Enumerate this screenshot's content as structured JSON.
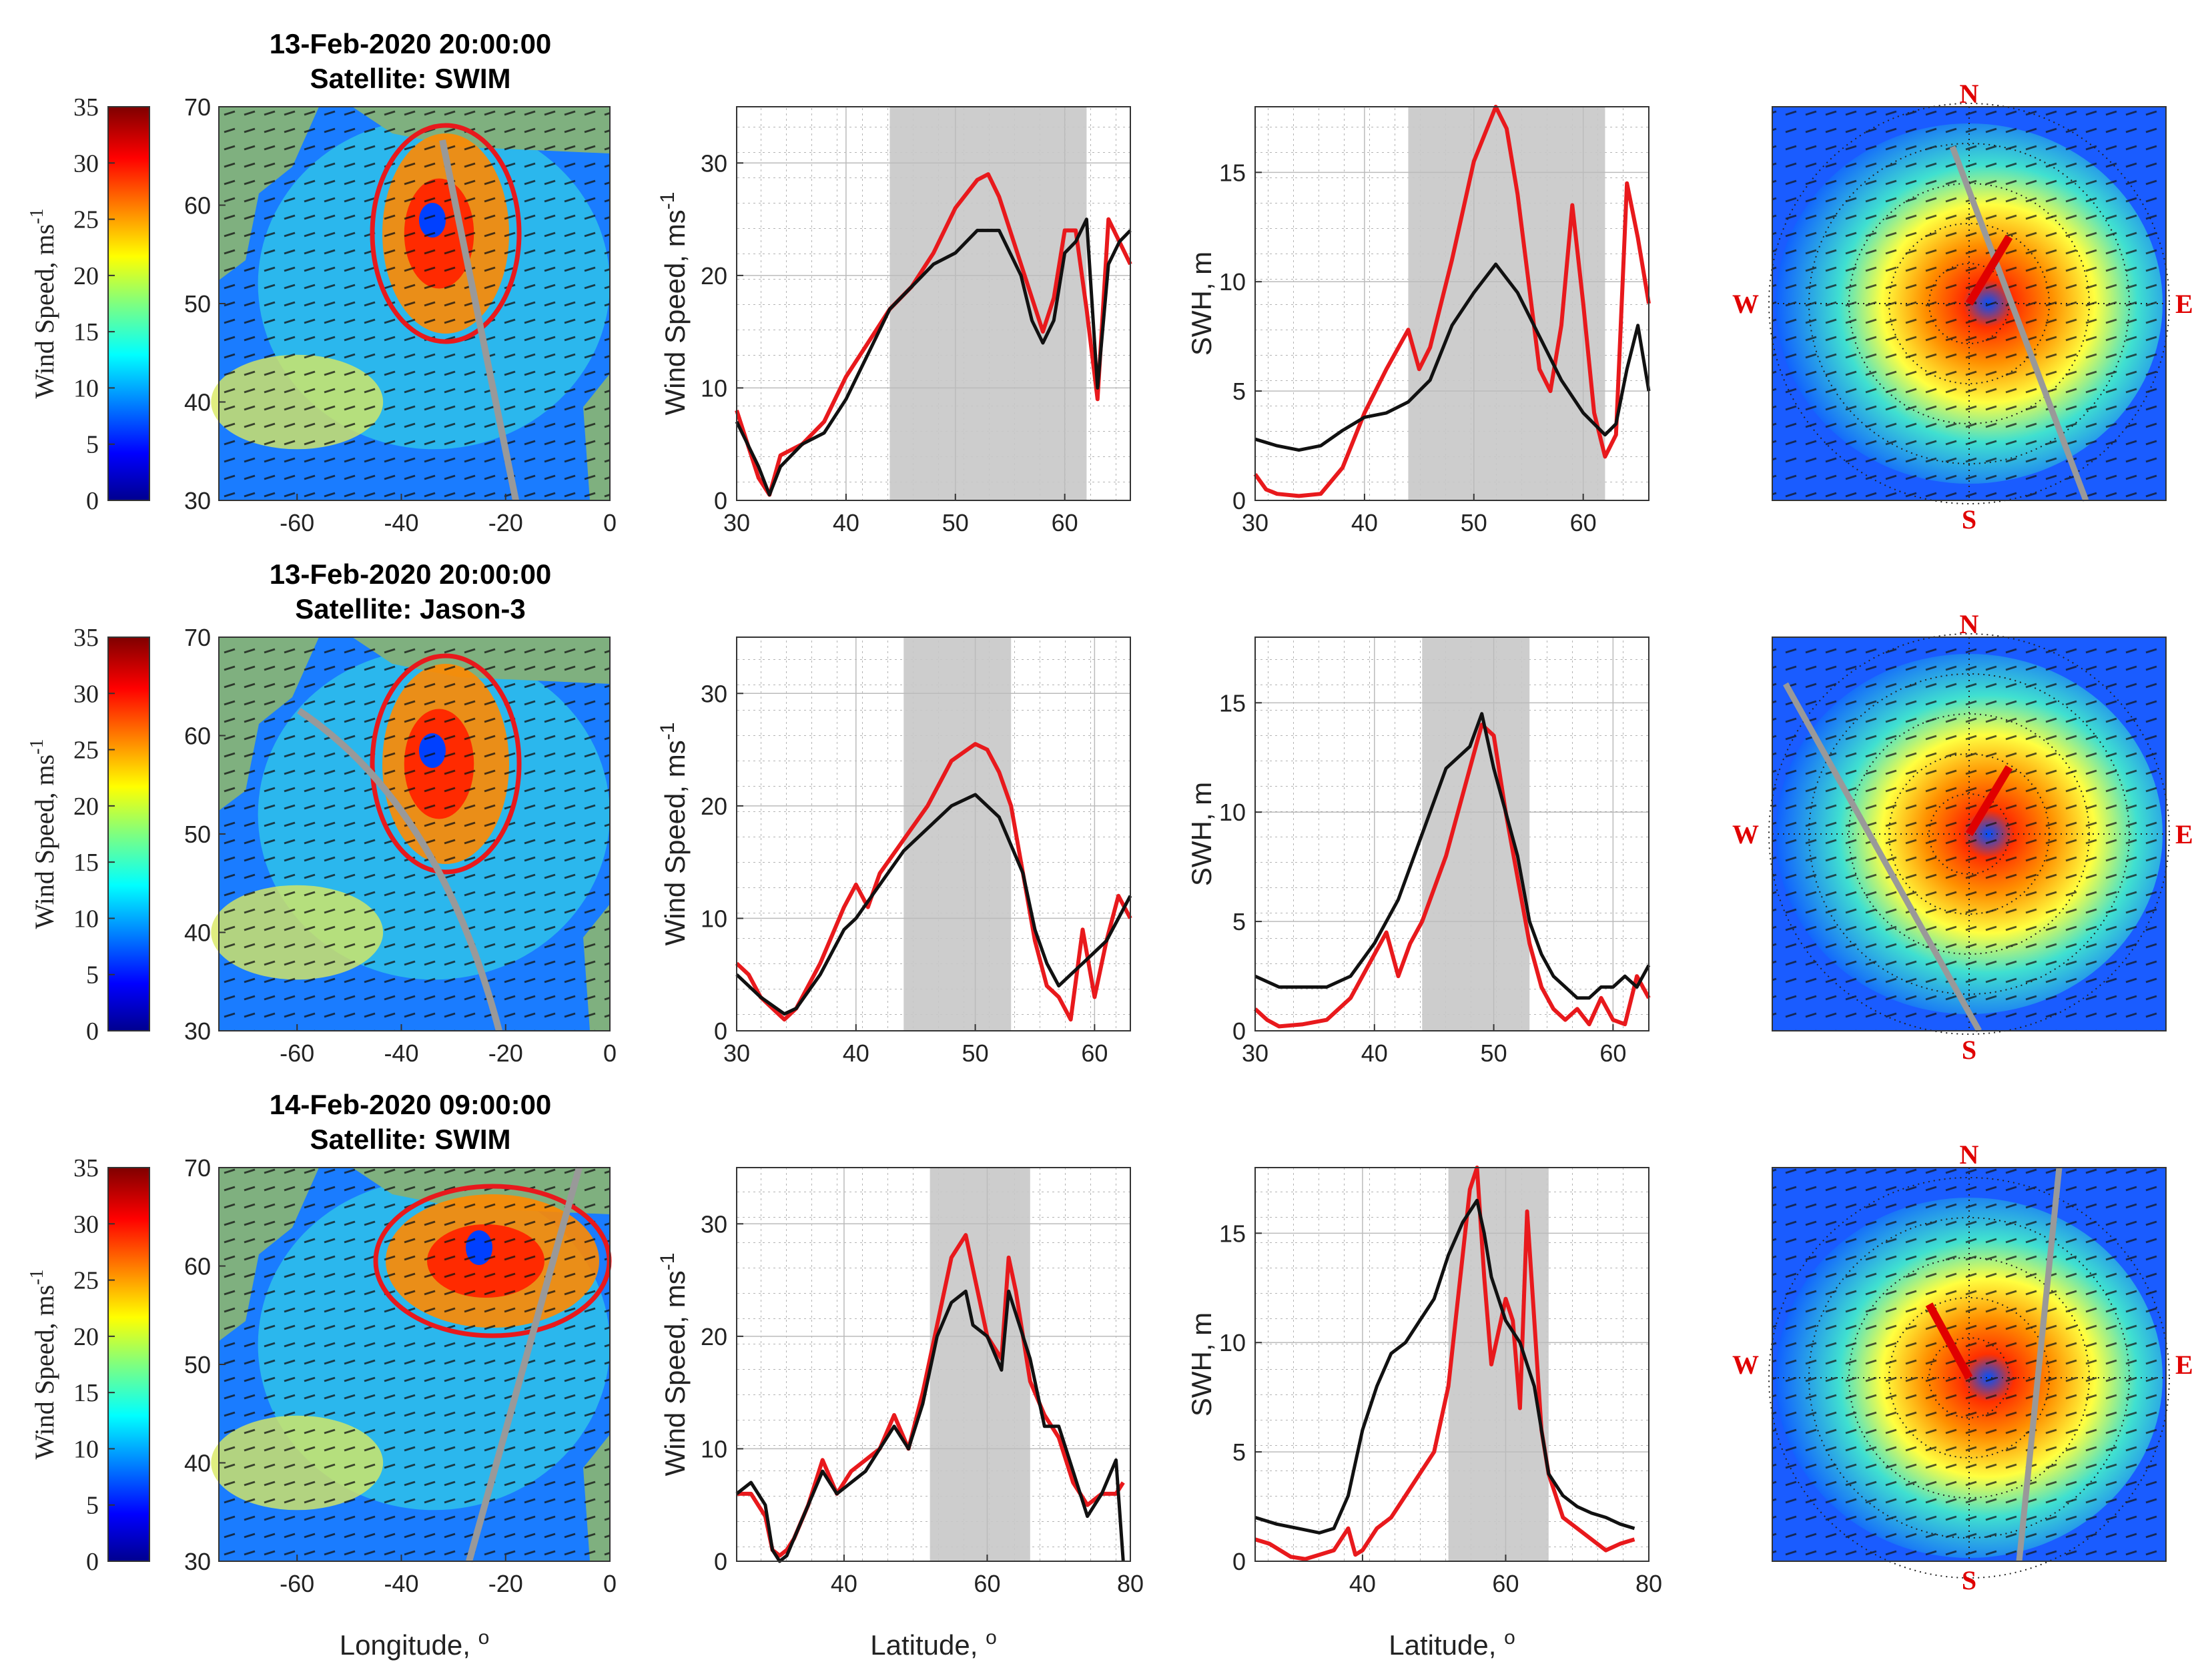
{
  "colors": {
    "model": "#e8191c",
    "satellite": "#111111",
    "track": "#999999",
    "shade": "#c8c8c8",
    "land": "#7fb07f",
    "compass": "#e00000"
  },
  "colorbar": {
    "label": "Wind Speed, ms",
    "superscript": "-1",
    "ticks": [
      "0",
      "5",
      "10",
      "15",
      "20",
      "25",
      "30",
      "35"
    ]
  },
  "map_axes": {
    "xlabel": "Longitude, o",
    "lon_ticks": [
      "-60",
      "-40",
      "-20",
      "0"
    ],
    "lat_ticks": [
      "30",
      "40",
      "50",
      "60",
      "70"
    ]
  },
  "compass": {
    "n": "N",
    "s": "S",
    "w": "W",
    "e": "E"
  },
  "rows": [
    {
      "title": "13-Feb-2020 20:00:00",
      "subtitle": "Satellite: SWIM"
    },
    {
      "title": "13-Feb-2020 20:00:00",
      "subtitle": "Satellite: Jason-3"
    },
    {
      "title": "14-Feb-2020 09:00:00",
      "subtitle": "Satellite: SWIM"
    }
  ],
  "chart_data": [
    {
      "type": "line",
      "row": 0,
      "title": "13-Feb-2020 20:00:00 / Satellite: SWIM",
      "xlabel": "",
      "ylabel": "Wind Speed, ms-1",
      "xlim": [
        30,
        66
      ],
      "ylim": [
        0,
        35
      ],
      "xticks": [
        "30",
        "40",
        "50",
        "60"
      ],
      "yticks": [
        "0",
        "10",
        "20",
        "30"
      ],
      "shaded": [
        44,
        62
      ],
      "series": [
        {
          "name": "model",
          "x": [
            30,
            31,
            32,
            33,
            34,
            36,
            38,
            40,
            42,
            44,
            46,
            48,
            50,
            52,
            53,
            54,
            56,
            57,
            58,
            59,
            60,
            61,
            62,
            63,
            64,
            65,
            66
          ],
          "values": [
            8,
            5,
            2,
            0.5,
            4,
            5,
            7,
            11,
            14,
            17,
            19,
            22,
            26,
            28.5,
            29,
            27,
            21,
            18,
            15,
            18,
            24,
            24,
            17,
            9,
            25,
            23,
            21
          ]
        },
        {
          "name": "satellite",
          "x": [
            30,
            31,
            32,
            33,
            34,
            36,
            38,
            40,
            42,
            44,
            46,
            48,
            50,
            52,
            54,
            55,
            56,
            57,
            58,
            59,
            60,
            61,
            62,
            63,
            64,
            65,
            66
          ],
          "values": [
            7,
            5,
            3,
            0.5,
            3,
            5,
            6,
            9,
            13,
            17,
            19,
            21,
            22,
            24,
            24,
            22,
            20,
            16,
            14,
            16,
            22,
            23,
            25,
            10,
            21,
            23,
            24
          ]
        }
      ]
    },
    {
      "type": "line",
      "row": 0,
      "title": "13-Feb-2020 20:00:00 / Satellite: SWIM",
      "xlabel": "",
      "ylabel": "SWH, m",
      "xlim": [
        30,
        66
      ],
      "ylim": [
        0,
        18
      ],
      "xticks": [
        "30",
        "40",
        "50",
        "60"
      ],
      "yticks": [
        "0",
        "5",
        "10",
        "15"
      ],
      "shaded": [
        44,
        62
      ],
      "series": [
        {
          "name": "model",
          "x": [
            30,
            31,
            32,
            34,
            36,
            38,
            40,
            42,
            44,
            45,
            46,
            48,
            50,
            52,
            53,
            54,
            56,
            57,
            58,
            59,
            60,
            61,
            62,
            63,
            64,
            65,
            66
          ],
          "values": [
            1.2,
            0.5,
            0.3,
            0.2,
            0.3,
            1.5,
            4,
            6,
            7.8,
            6,
            7,
            11,
            15.5,
            18,
            17,
            14,
            6,
            5,
            8,
            13.5,
            9,
            4,
            2,
            3,
            14.5,
            12,
            9
          ]
        },
        {
          "name": "satellite",
          "x": [
            30,
            32,
            34,
            36,
            38,
            40,
            42,
            44,
            46,
            48,
            50,
            52,
            54,
            56,
            58,
            60,
            62,
            63,
            64,
            65,
            66
          ],
          "values": [
            2.8,
            2.5,
            2.3,
            2.5,
            3.2,
            3.8,
            4,
            4.5,
            5.5,
            8,
            9.5,
            10.8,
            9.5,
            7.5,
            5.5,
            4,
            3,
            3.5,
            6,
            8,
            5
          ]
        }
      ]
    },
    {
      "type": "line",
      "row": 1,
      "title": "13-Feb-2020 20:00:00 / Satellite: Jason-3",
      "xlabel": "",
      "ylabel": "Wind Speed, ms-1",
      "xlim": [
        30,
        63
      ],
      "ylim": [
        0,
        35
      ],
      "xticks": [
        "30",
        "40",
        "50",
        "60"
      ],
      "yticks": [
        "0",
        "10",
        "20",
        "30"
      ],
      "shaded": [
        44,
        53
      ],
      "series": [
        {
          "name": "model",
          "x": [
            30,
            31,
            32,
            33,
            34,
            35,
            37,
            39,
            40,
            41,
            42,
            44,
            46,
            48,
            50,
            51,
            52,
            53,
            54,
            55,
            56,
            57,
            58,
            59,
            60,
            61,
            62,
            63
          ],
          "values": [
            6,
            5,
            3,
            2,
            1,
            2,
            6,
            11,
            13,
            11,
            14,
            17,
            20,
            24,
            25.5,
            25,
            23,
            20,
            14,
            8,
            4,
            3,
            1,
            9,
            3,
            8,
            12,
            10
          ]
        },
        {
          "name": "satellite",
          "x": [
            30,
            32,
            34,
            35,
            37,
            39,
            40,
            42,
            44,
            46,
            48,
            50,
            52,
            54,
            55,
            56,
            57,
            58,
            59,
            60,
            61,
            62,
            63
          ],
          "values": [
            5,
            3,
            1.5,
            2,
            5,
            9,
            10,
            13,
            16,
            18,
            20,
            21,
            19,
            14,
            9,
            6,
            4,
            5,
            6,
            7,
            8,
            10,
            12
          ]
        }
      ]
    },
    {
      "type": "line",
      "row": 1,
      "title": "13-Feb-2020 20:00:00 / Satellite: Jason-3",
      "xlabel": "",
      "ylabel": "SWH, m",
      "xlim": [
        30,
        63
      ],
      "ylim": [
        0,
        18
      ],
      "xticks": [
        "30",
        "40",
        "50",
        "60"
      ],
      "yticks": [
        "0",
        "5",
        "10",
        "15"
      ],
      "shaded": [
        44,
        53
      ],
      "series": [
        {
          "name": "model",
          "x": [
            30,
            31,
            32,
            34,
            36,
            38,
            40,
            41,
            42,
            43,
            44,
            46,
            48,
            49,
            50,
            51,
            52,
            53,
            54,
            55,
            56,
            57,
            58,
            59,
            60,
            61,
            62,
            63
          ],
          "values": [
            1,
            0.5,
            0.2,
            0.3,
            0.5,
            1.5,
            3.5,
            4.5,
            2.5,
            4,
            5,
            8,
            12,
            14,
            13.5,
            10,
            7,
            4,
            2,
            1,
            0.5,
            1,
            0.3,
            1.5,
            0.5,
            0.3,
            2.5,
            1.5
          ]
        },
        {
          "name": "satellite",
          "x": [
            30,
            32,
            34,
            36,
            38,
            40,
            42,
            44,
            46,
            48,
            49,
            50,
            51,
            52,
            53,
            54,
            55,
            56,
            57,
            58,
            59,
            60,
            61,
            62,
            63
          ],
          "values": [
            2.5,
            2,
            2,
            2,
            2.5,
            4,
            6,
            9,
            12,
            13,
            14.5,
            12,
            10,
            8,
            5,
            3.5,
            2.5,
            2,
            1.5,
            1.5,
            2,
            2,
            2.5,
            2,
            3
          ]
        }
      ]
    },
    {
      "type": "line",
      "row": 2,
      "title": "14-Feb-2020 09:00:00 / Satellite: SWIM",
      "xlabel": "Latitude, o",
      "ylabel": "Wind Speed, ms-1",
      "xlim": [
        25,
        80
      ],
      "ylim": [
        0,
        35
      ],
      "xticks": [
        "40",
        "60",
        "80"
      ],
      "yticks": [
        "0",
        "10",
        "20",
        "30"
      ],
      "shaded": [
        52,
        66
      ],
      "series": [
        {
          "name": "model",
          "x": [
            25,
            27,
            29,
            30,
            31,
            32,
            33,
            35,
            37,
            39,
            41,
            43,
            45,
            47,
            49,
            51,
            53,
            55,
            57,
            58,
            60,
            62,
            63,
            64,
            66,
            68,
            70,
            72,
            74,
            76,
            78,
            79
          ],
          "values": [
            6,
            6,
            4,
            1,
            0.5,
            1,
            2,
            5,
            9,
            6,
            8,
            9,
            10,
            13,
            10,
            15,
            21,
            27,
            29,
            26,
            20,
            18,
            27,
            24,
            16,
            13,
            11,
            7,
            5,
            6,
            6,
            7
          ]
        },
        {
          "name": "satellite",
          "x": [
            25,
            27,
            29,
            30,
            31,
            32,
            33,
            35,
            37,
            39,
            41,
            43,
            45,
            47,
            49,
            51,
            53,
            55,
            57,
            58,
            60,
            62,
            63,
            64,
            66,
            68,
            70,
            72,
            74,
            76,
            78,
            79
          ],
          "values": [
            6,
            7,
            5,
            1,
            0,
            0.5,
            2,
            5,
            8,
            6,
            7,
            8,
            10,
            12,
            10,
            14,
            20,
            23,
            24,
            21,
            20,
            17,
            24,
            22,
            18,
            12,
            12,
            8,
            4,
            6,
            9,
            0
          ]
        }
      ]
    },
    {
      "type": "line",
      "row": 2,
      "title": "14-Feb-2020 09:00:00 / Satellite: SWIM",
      "xlabel": "Latitude, o",
      "ylabel": "SWH, m",
      "xlim": [
        25,
        80
      ],
      "ylim": [
        0,
        18
      ],
      "xticks": [
        "40",
        "60",
        "80"
      ],
      "yticks": [
        "0",
        "5",
        "10",
        "15"
      ],
      "shaded": [
        52,
        66
      ],
      "series": [
        {
          "name": "model",
          "x": [
            25,
            27,
            30,
            32,
            34,
            36,
            38,
            39,
            40,
            42,
            44,
            46,
            48,
            50,
            52,
            54,
            55,
            56,
            57,
            58,
            60,
            61,
            62,
            63,
            64,
            65,
            66,
            68,
            70,
            72,
            74,
            76,
            78
          ],
          "values": [
            1,
            0.8,
            0.2,
            0.1,
            0.3,
            0.5,
            1.5,
            0.3,
            0.5,
            1.5,
            2,
            3,
            4,
            5,
            8,
            14,
            17,
            18,
            13,
            9,
            12,
            11,
            7,
            16,
            11,
            6,
            4,
            2,
            1.5,
            1,
            0.5,
            0.8,
            1
          ]
        },
        {
          "name": "satellite",
          "x": [
            25,
            28,
            31,
            34,
            36,
            38,
            40,
            42,
            44,
            46,
            48,
            50,
            52,
            54,
            56,
            57,
            58,
            60,
            62,
            63,
            64,
            66,
            68,
            70,
            72,
            74,
            76,
            78
          ],
          "values": [
            2,
            1.7,
            1.5,
            1.3,
            1.5,
            3,
            6,
            8,
            9.5,
            10,
            11,
            12,
            14,
            15.5,
            16.5,
            15,
            13,
            11,
            10,
            9,
            8,
            4,
            3,
            2.5,
            2.2,
            2,
            1.7,
            1.5
          ]
        }
      ]
    }
  ]
}
